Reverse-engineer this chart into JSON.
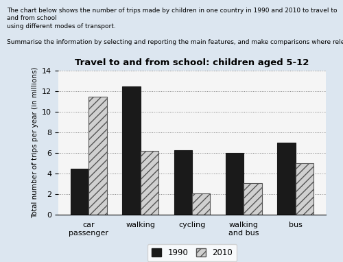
{
  "title": "Travel to and from school: children aged 5-12",
  "ylabel": "Total number of trips per year (in millions)",
  "categories": [
    "car\npassenger",
    "walking",
    "cycling",
    "walking\nand bus",
    "bus"
  ],
  "values_1990": [
    4.5,
    12.5,
    6.3,
    6.0,
    7.0
  ],
  "values_2010": [
    11.5,
    6.2,
    2.1,
    3.1,
    5.0
  ],
  "color_1990": "#1a1a1a",
  "color_2010_hatch": "///",
  "color_2010_face": "#d0d0d0",
  "color_2010_edge": "#555555",
  "ylim": [
    0,
    14
  ],
  "yticks": [
    0,
    2,
    4,
    6,
    8,
    10,
    12,
    14
  ],
  "bar_width": 0.35,
  "legend_labels": [
    "1990",
    "2010"
  ],
  "header_text1": "The chart below shows the number of trips made by children in one country in 1990 and 2010 to travel to and from school",
  "header_text2": "using different modes of transport.",
  "header_text3": "Summarise the information by selecting and reporting the main features, and make comparisons where relevant.",
  "bg_color": "#dce6f0",
  "plot_bg_color": "#f5f5f5"
}
